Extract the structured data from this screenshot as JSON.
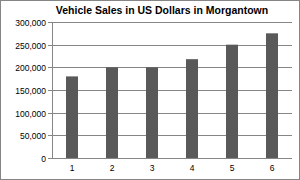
{
  "chart_data": {
    "type": "bar",
    "title": "Vehicle Sales in US Dollars in Morgantown",
    "categories": [
      "1",
      "2",
      "3",
      "4",
      "5",
      "6"
    ],
    "values": [
      180000,
      200000,
      200000,
      218000,
      250000,
      275000
    ],
    "color": "#595959",
    "ylim": [
      0,
      300000
    ],
    "yticks": [
      0,
      {
        "value": 50000,
        "label": "50,000"
      },
      {
        "value": 100000,
        "label": "100,000"
      },
      {
        "value": 150000,
        "label": "150,000"
      },
      {
        "value": 200000,
        "label": "200,000"
      },
      {
        "value": 250000,
        "label": "250,000"
      },
      {
        "value": 300000,
        "label": "300,000"
      }
    ],
    "grid": true
  }
}
